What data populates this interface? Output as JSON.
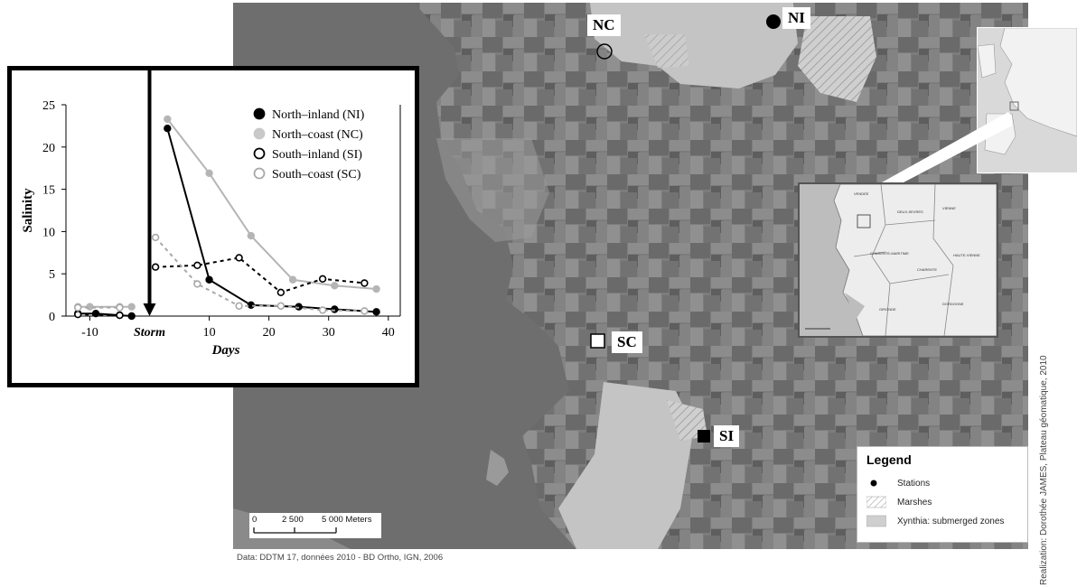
{
  "stations": {
    "ni": "NI",
    "nc": "NC",
    "sc": "SC",
    "si": "SI"
  },
  "legend": {
    "title": "Legend",
    "items": [
      "Stations",
      "Marshes",
      "Xynthia: submerged zones"
    ]
  },
  "scale_bar": {
    "labels": [
      "0",
      "2 500",
      "5 000 Meters"
    ]
  },
  "source_note": "Data: DDTM 17, données 2010 - BD Ortho, IGN, 2006",
  "credit": "Realization: Dorothée JAMES, Plateau géomatique, 2010",
  "inset_regions": [
    "VENDEE",
    "DEUX-SEVRES",
    "VIENNE",
    "CHARENTE-MARITIME",
    "CHARENTE",
    "HAUTE-VIENNE",
    "GIRONDE",
    "DORDOGNE"
  ],
  "colors": {
    "sea": "#6e6e6e",
    "land": "#7a7a7a",
    "submerged": "#c4c4c4",
    "north_inland": "#000000",
    "north_coast": "#b5b5b5",
    "south_inland": "#000000",
    "south_coast": "#a8a8a8"
  },
  "chart_data": {
    "type": "line",
    "xlabel": "Days",
    "ylabel": "Salinity",
    "storm_label": "Storm",
    "xlim": [
      -14,
      42
    ],
    "ylim": [
      0,
      25
    ],
    "x_ticks": [
      "-10",
      "10",
      "20",
      "30",
      "40"
    ],
    "y_ticks": [
      "0",
      "5",
      "10",
      "15",
      "20",
      "25"
    ],
    "legend_position": "top-right",
    "series": [
      {
        "name": "North–inland (NI)",
        "marker": "filled-black",
        "style": "solid",
        "x": [
          -12,
          -9,
          -5,
          -3,
          3,
          10,
          17,
          25,
          31,
          38
        ],
        "y": [
          0.3,
          0.3,
          0.1,
          0.0,
          22.2,
          4.3,
          1.3,
          1.1,
          0.8,
          0.5
        ]
      },
      {
        "name": "North–coast (NC)",
        "marker": "filled-grey",
        "style": "solid",
        "x": [
          -12,
          -10,
          -5,
          -3,
          3,
          10,
          17,
          24,
          31,
          38
        ],
        "y": [
          1.1,
          1.1,
          1.1,
          1.1,
          23.3,
          16.9,
          9.5,
          4.3,
          3.6,
          3.2
        ]
      },
      {
        "name": "South–inland (SI)",
        "marker": "open-black",
        "style": "dashed",
        "x": [
          -12,
          -5,
          1,
          8,
          15,
          22,
          29,
          36
        ],
        "y": [
          0.2,
          0.1,
          5.8,
          6.0,
          6.9,
          2.8,
          4.4,
          3.9
        ]
      },
      {
        "name": "South–coast (SC)",
        "marker": "open-grey",
        "style": "dashed",
        "x": [
          -12,
          -5,
          1,
          8,
          15,
          22,
          29,
          36
        ],
        "y": [
          1.0,
          1.0,
          9.3,
          3.8,
          1.2,
          1.2,
          0.7,
          0.6
        ]
      }
    ]
  }
}
